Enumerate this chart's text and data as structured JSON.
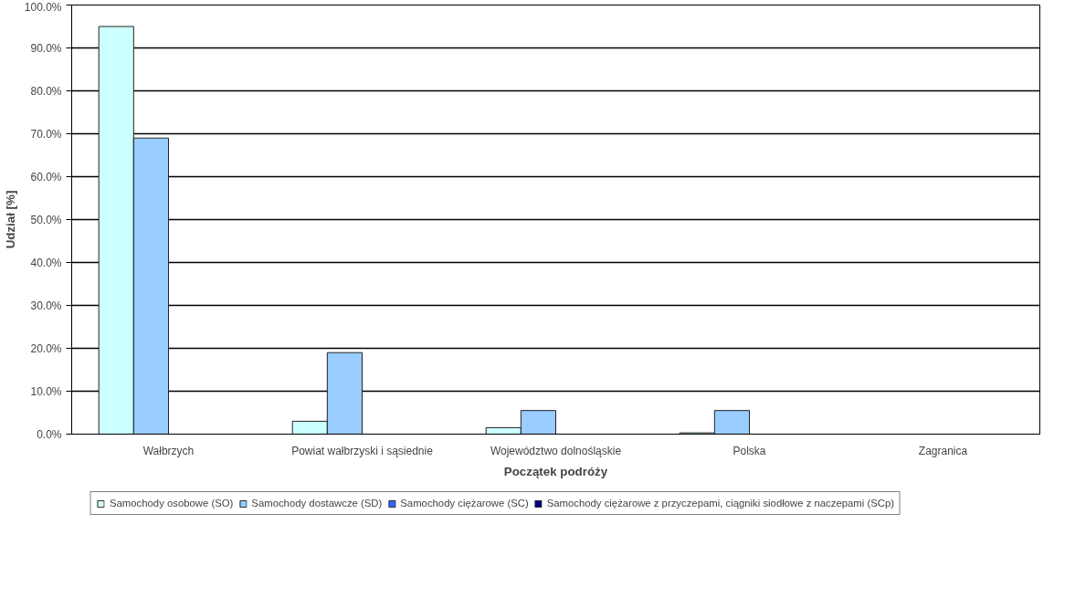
{
  "chart_data": {
    "type": "bar",
    "xlabel": "Początek podróży",
    "ylabel": "Udział [%]",
    "categories": [
      "Wałbrzych",
      "Powiat wałbrzyski i sąsiednie",
      "Województwo dolnośląskie",
      "Polska",
      "Zagranica"
    ],
    "series": [
      {
        "name": "Samochody osobowe (SO)",
        "color": "#ccffff",
        "values": [
          95,
          3,
          1.5,
          0.3,
          0
        ]
      },
      {
        "name": "Samochody dostawcze (SD)",
        "color": "#99ccff",
        "values": [
          69,
          19,
          5.5,
          5.5,
          0
        ]
      },
      {
        "name": "Samochody ciężarowe (SC)",
        "color": "#3366ff",
        "values": [
          0,
          0,
          0,
          0,
          0
        ]
      },
      {
        "name": "Samochody ciężarowe z przyczepami, ciągniki siodłowe z naczepami (SCp)",
        "color": "#000080",
        "values": [
          0,
          0,
          0,
          0,
          0
        ]
      }
    ],
    "ylim": [
      0,
      100
    ],
    "yticks": [
      {
        "value": 0,
        "label": "0.0%"
      },
      {
        "value": 10,
        "label": "10.0%"
      },
      {
        "value": 20,
        "label": "20.0%"
      },
      {
        "value": 30,
        "label": "30.0%"
      },
      {
        "value": 40,
        "label": "40.0%"
      },
      {
        "value": 50,
        "label": "50.0%"
      },
      {
        "value": 60,
        "label": "60.0%"
      },
      {
        "value": 70,
        "label": "70.0%"
      },
      {
        "value": 80,
        "label": "80.0%"
      },
      {
        "value": 90,
        "label": "90.0%"
      },
      {
        "value": 100,
        "label": "100.0%"
      }
    ],
    "grid": "y",
    "legend": "bottom"
  }
}
